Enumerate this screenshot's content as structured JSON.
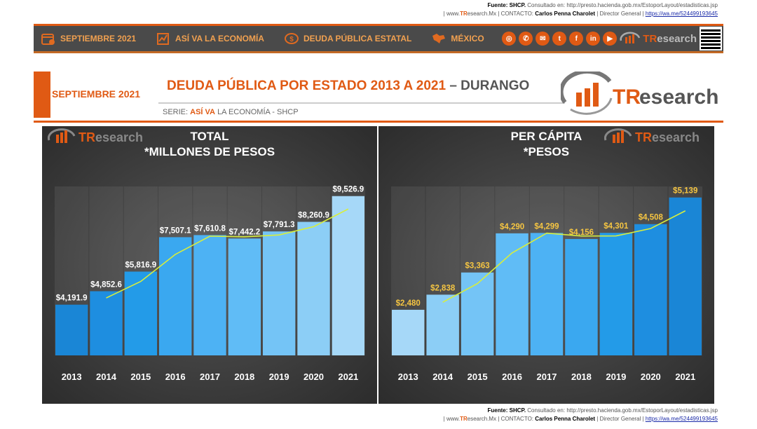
{
  "source_top": {
    "line1_prefix": "Fuente:",
    "line1_source": "SHCP.",
    "line1_rest": "Consultado en: http://presto.hacienda.gob.mx/EstoporLayout/estadisticas.jsp",
    "line2_www": "www.",
    "line2_tr": "TR",
    "line2_domain": "esearch.Mx",
    "line2_contact": "CONTACTO:",
    "line2_name": "Carlos Penna Charolet",
    "line2_role": "Director General",
    "line2_link": "https://wa.me/524499193645"
  },
  "nav": {
    "items": [
      {
        "label": "SEPTIEMBRE 2021",
        "icon": "calendar-icon"
      },
      {
        "label": "ASÍ VA LA ECONOMÍA",
        "icon": "chart-icon"
      },
      {
        "label": "DEUDA PÚBLICA ESTATAL",
        "icon": "debt-icon"
      },
      {
        "label": "MÉXICO",
        "icon": "map-icon"
      }
    ],
    "social": [
      "globe-icon",
      "whatsapp-icon",
      "email-icon",
      "twitter-icon",
      "facebook-icon",
      "linkedin-icon",
      "youtube-icon"
    ],
    "brand_t": "TR",
    "brand_rest": "esearch"
  },
  "header": {
    "month": "SEPTIEMBRE 2021",
    "title": "DEUDA PÚBLICA POR ESTADO 2013 A 2021",
    "title_sep": " – ",
    "title_state": "DURANGO",
    "serie_label": "SERIE:",
    "serie_bold": "ASÍ VA",
    "serie_rest": "LA ECONOMÍA - SHCP",
    "brand_t": "TR",
    "brand_rest": "esearch"
  },
  "colors": {
    "accent": "#e05a14",
    "trend": "#d8ee3c",
    "panel_bg": "#3a3a3a"
  },
  "chart_data": [
    {
      "type": "bar",
      "title": "TOTAL",
      "subtitle": "*MILLONES DE PESOS",
      "categories": [
        "2013",
        "2014",
        "2015",
        "2016",
        "2017",
        "2018",
        "2019",
        "2020",
        "2021"
      ],
      "values": [
        4191.9,
        4852.6,
        5816.9,
        7507.1,
        7610.8,
        7442.2,
        7791.3,
        8260.9,
        9526.9
      ],
      "labels": [
        "$4,191.9",
        "$4,852.6",
        "$5,816.9",
        "$7,507.1",
        "$7,610.8",
        "$7,442.2",
        "$7,791.3",
        "$8,260.9",
        "$9,526.9"
      ],
      "label_color": "#ffffff",
      "trend": "moving average (2 periods)",
      "ylim": [
        1700,
        10000
      ],
      "bar_colors": [
        "#1a86d6",
        "#1e8ee0",
        "#239be8",
        "#3aa8f0",
        "#4db2f4",
        "#60bcf6",
        "#74c4f6",
        "#8ccef6",
        "#a6d8f8"
      ]
    },
    {
      "type": "bar",
      "title": "PER CÁPITA",
      "subtitle": "*PESOS",
      "categories": [
        "2013",
        "2014",
        "2015",
        "2016",
        "2017",
        "2018",
        "2019",
        "2020",
        "2021"
      ],
      "values": [
        2480,
        2838,
        3363,
        4290,
        4299,
        4156,
        4301,
        4508,
        5139
      ],
      "labels": [
        "$2,480",
        "$2,838",
        "$3,363",
        "$4,290",
        "$4,299",
        "$4,156",
        "$4,301",
        "$4,508",
        "$5,139"
      ],
      "label_color": "#f5c542",
      "trend": "moving average (2 periods)",
      "ylim": [
        1400,
        5400
      ],
      "bar_colors": [
        "#a6d8f8",
        "#8ccef6",
        "#74c4f6",
        "#60bcf6",
        "#4db2f4",
        "#3aa8f0",
        "#239be8",
        "#1e8ee0",
        "#1a86d6"
      ]
    }
  ],
  "source_bottom": {
    "line1_prefix": "Fuente:",
    "line1_source": "SHCP.",
    "line1_rest": "Consultado en: http://presto.hacienda.gob.mx/EstoporLayout/estadisticas.jsp",
    "line2_www": "www.",
    "line2_tr": "TR",
    "line2_domain": "esearch.Mx",
    "line2_contact": "CONTACTO:",
    "line2_name": "Carlos Penna Charolet",
    "line2_role": "Director General",
    "line2_link": "https://wa.me/524499193645"
  }
}
